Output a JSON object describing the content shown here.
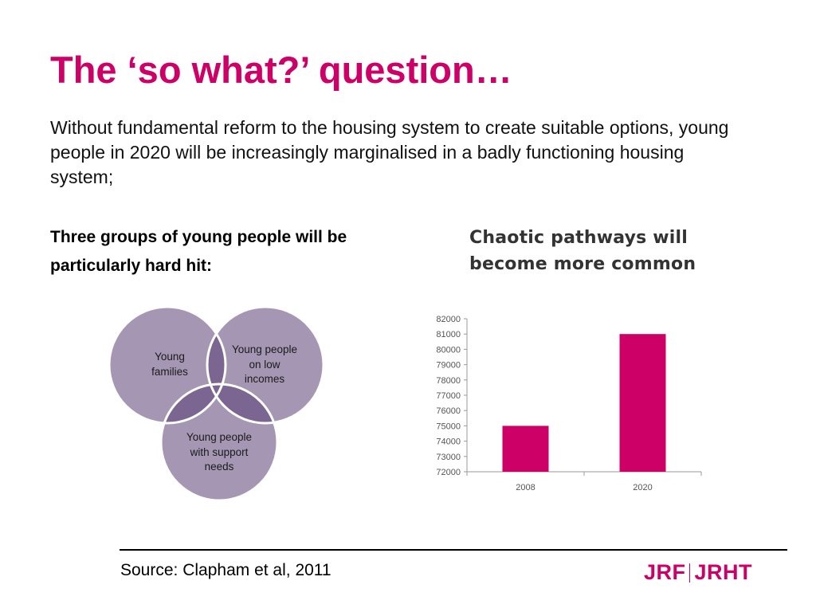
{
  "slide": {
    "title": "The ‘so what?’ question…",
    "intro": "Without fundamental reform to the housing system to create suitable options, young people in 2020 will be increasingly marginalised in a badly functioning housing system;",
    "groups_heading": "Three groups of young people will be particularly hard hit:",
    "source": "Source: Clapham et al, 2011"
  },
  "venn": {
    "circles": [
      {
        "label_lines": [
          "Young",
          "families"
        ]
      },
      {
        "label_lines": [
          "Young people",
          "on low",
          "incomes"
        ]
      },
      {
        "label_lines": [
          "Young people",
          "with support",
          "needs"
        ]
      }
    ],
    "fill_color": "#a597b4",
    "overlap_color": "#7a6691",
    "stroke_color": "#ffffff"
  },
  "logo": {
    "left": "JRF",
    "right": "JRHT",
    "color": "#cc0066"
  },
  "chart_data": {
    "type": "bar",
    "title": "Chaotic pathways will become more common",
    "categories": [
      "2008",
      "2020"
    ],
    "values": [
      75000,
      81000
    ],
    "ylim": [
      72000,
      82000
    ],
    "yticks": [
      "72000",
      "73000",
      "74000",
      "75000",
      "76000",
      "77000",
      "78000",
      "79000",
      "80000",
      "81000",
      "82000"
    ],
    "bar_color": "#cc0066",
    "grid": false,
    "legend": "none"
  }
}
